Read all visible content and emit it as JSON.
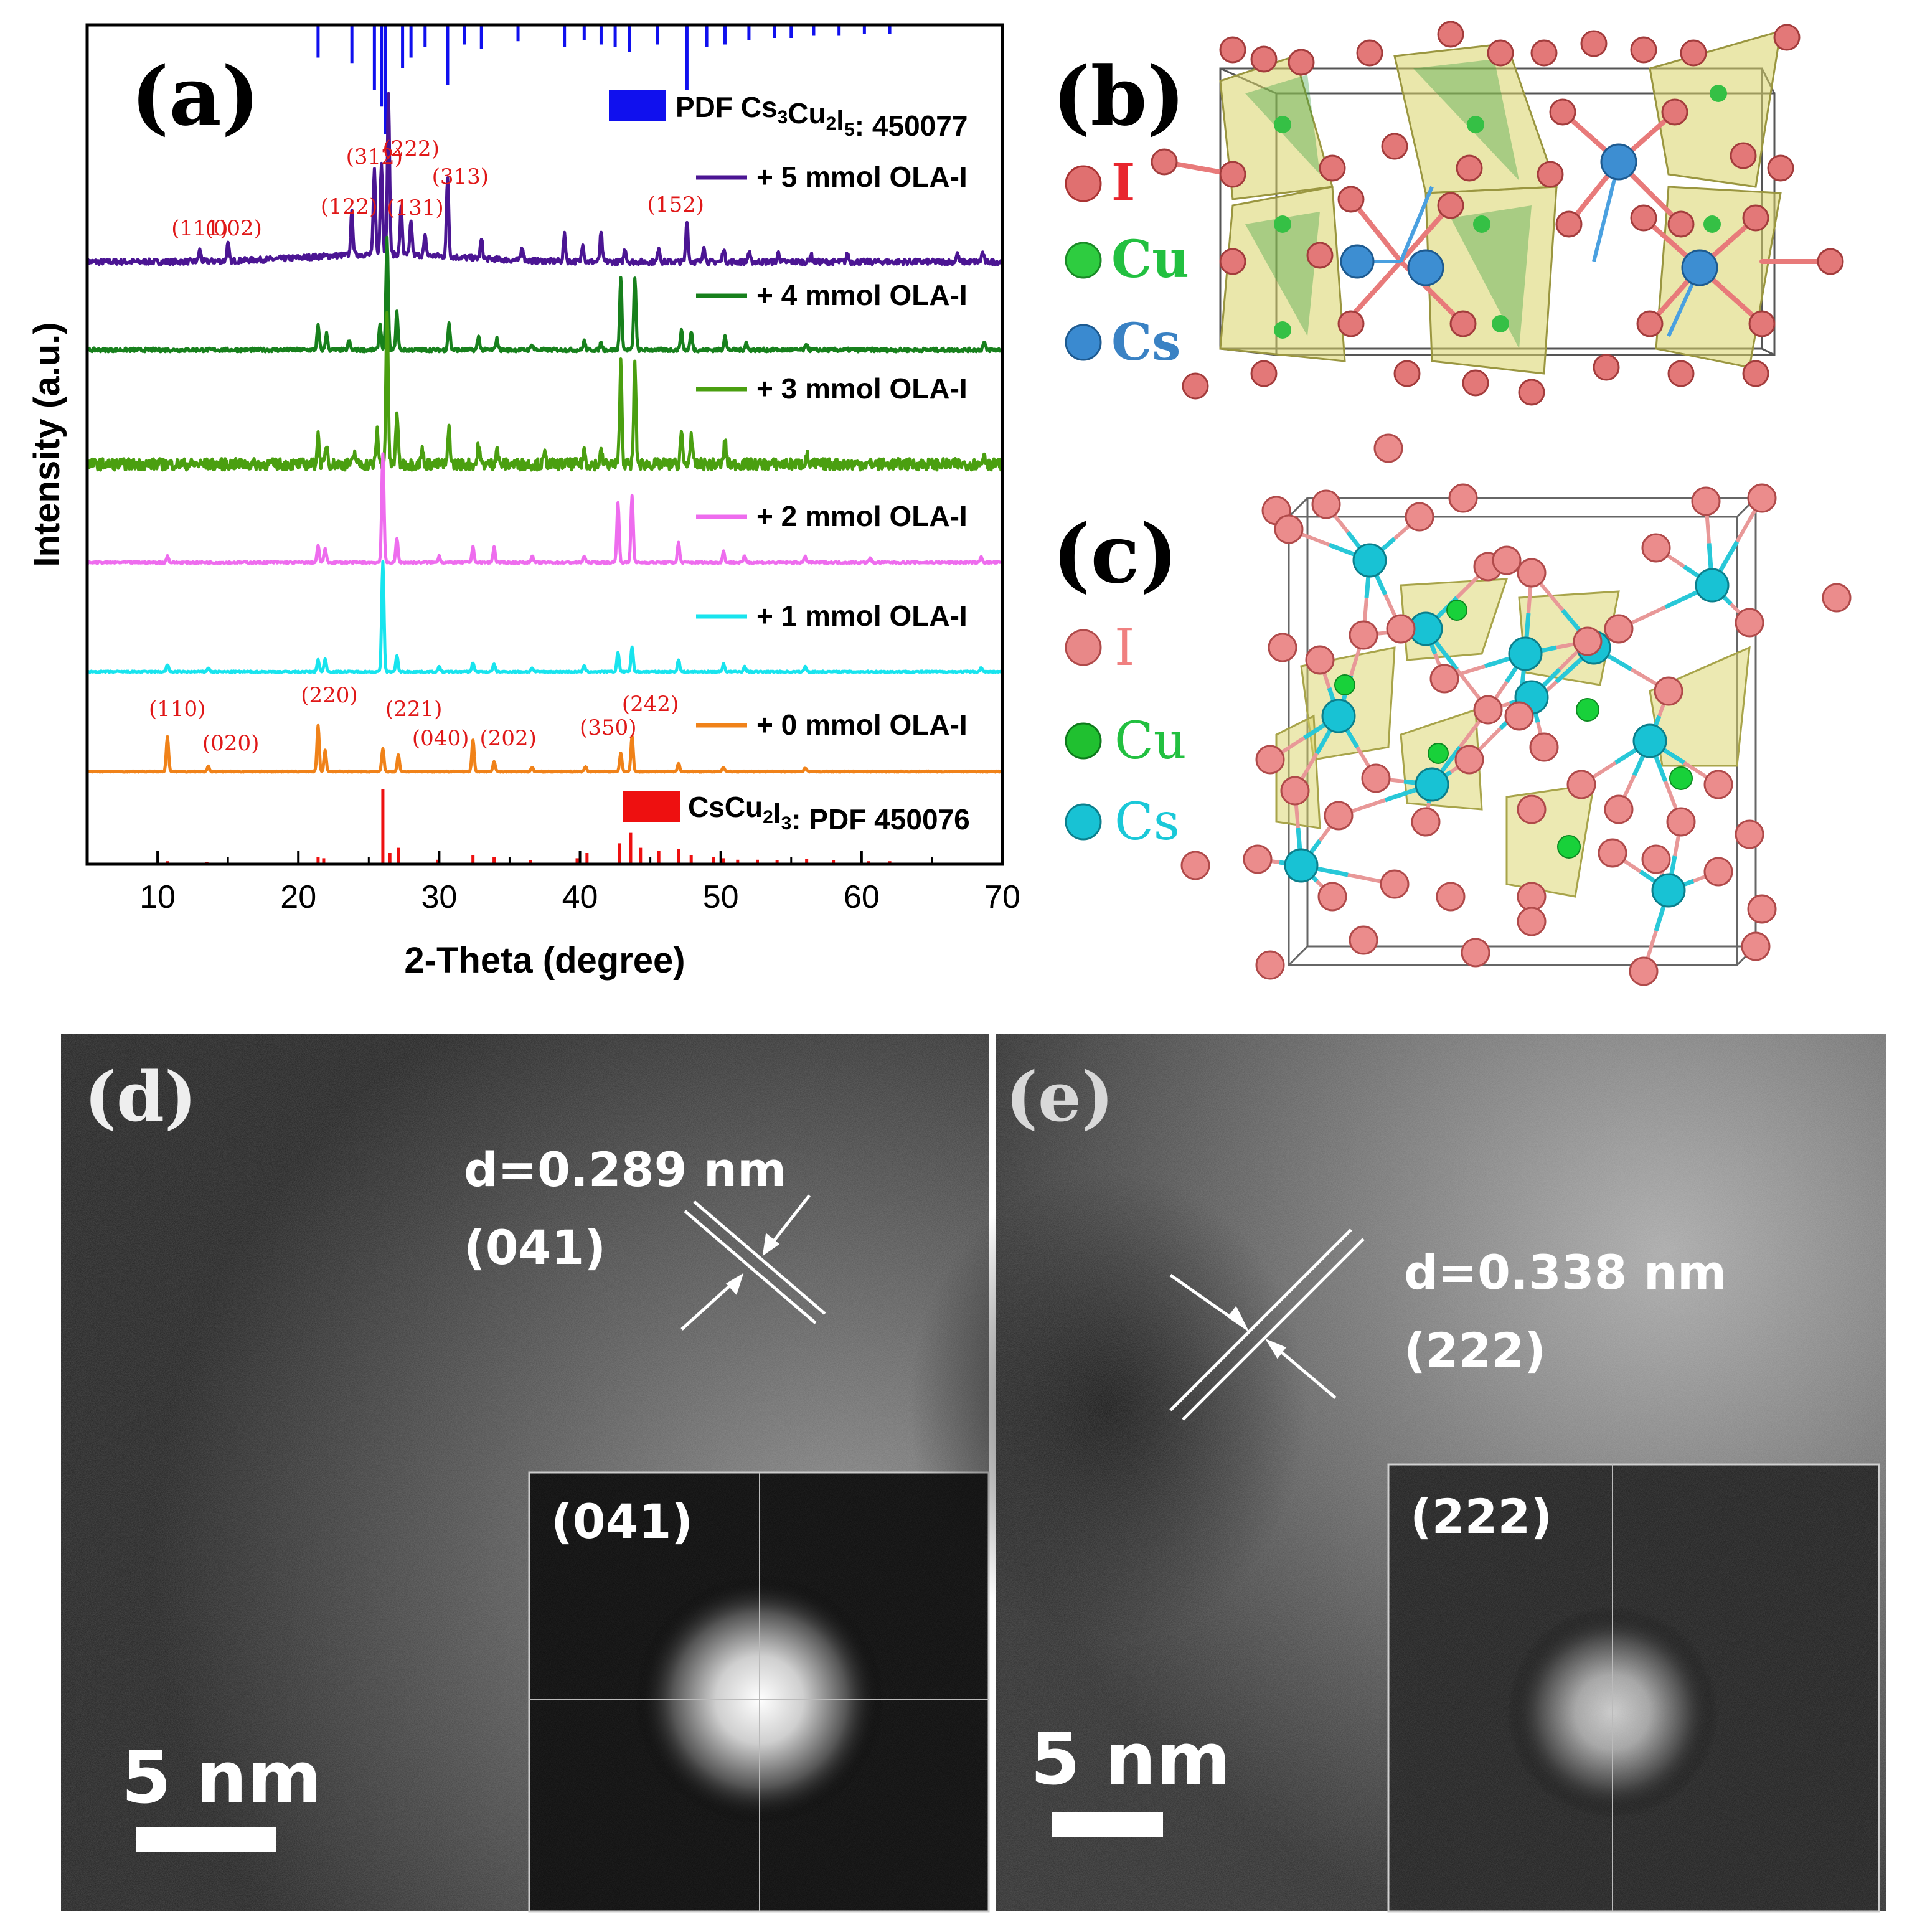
{
  "chart_data": {
    "type": "line",
    "panel_label": "(a)",
    "xlabel": "2-Theta (degree)",
    "ylabel": "Intensity (a.u.)",
    "xlim": [
      5,
      70
    ],
    "xticks": [
      10,
      20,
      30,
      40,
      50,
      60,
      70
    ],
    "grid": false,
    "legend_placement": "right, next to each trace",
    "reference_top": {
      "label": "PDF Cs3Cu2I5: 450077",
      "color": "#1010ee",
      "peaks": [
        {
          "x": 21.4,
          "h": 0.3
        },
        {
          "x": 23.8,
          "h": 0.35
        },
        {
          "x": 25.4,
          "h": 0.6
        },
        {
          "x": 25.9,
          "h": 0.75
        },
        {
          "x": 26.2,
          "h": 1.0
        },
        {
          "x": 27.4,
          "h": 0.4
        },
        {
          "x": 28.0,
          "h": 0.3
        },
        {
          "x": 29.0,
          "h": 0.2
        },
        {
          "x": 30.6,
          "h": 0.55
        },
        {
          "x": 31.8,
          "h": 0.18
        },
        {
          "x": 33.0,
          "h": 0.22
        },
        {
          "x": 35.6,
          "h": 0.15
        },
        {
          "x": 38.9,
          "h": 0.2
        },
        {
          "x": 40.3,
          "h": 0.14
        },
        {
          "x": 41.5,
          "h": 0.18
        },
        {
          "x": 42.5,
          "h": 0.2
        },
        {
          "x": 43.5,
          "h": 0.25
        },
        {
          "x": 45.5,
          "h": 0.18
        },
        {
          "x": 47.6,
          "h": 0.6
        },
        {
          "x": 49.0,
          "h": 0.2
        },
        {
          "x": 50.3,
          "h": 0.18
        },
        {
          "x": 52.0,
          "h": 0.14
        },
        {
          "x": 53.8,
          "h": 0.12
        },
        {
          "x": 55.0,
          "h": 0.12
        },
        {
          "x": 56.6,
          "h": 0.1
        },
        {
          "x": 58.4,
          "h": 0.1
        },
        {
          "x": 60.2,
          "h": 0.08
        },
        {
          "x": 62.0,
          "h": 0.08
        }
      ]
    },
    "reference_bottom": {
      "label": "CsCu2I3: PDF 450076",
      "color": "#ee1010",
      "peaks": [
        {
          "x": 10.7,
          "h": 0.04
        },
        {
          "x": 13.5,
          "h": 0.03
        },
        {
          "x": 21.4,
          "h": 0.1
        },
        {
          "x": 21.8,
          "h": 0.08
        },
        {
          "x": 26.0,
          "h": 1.0
        },
        {
          "x": 26.5,
          "h": 0.15
        },
        {
          "x": 27.1,
          "h": 0.22
        },
        {
          "x": 29.9,
          "h": 0.06
        },
        {
          "x": 32.4,
          "h": 0.12
        },
        {
          "x": 33.9,
          "h": 0.1
        },
        {
          "x": 36.5,
          "h": 0.05
        },
        {
          "x": 39.8,
          "h": 0.08
        },
        {
          "x": 40.5,
          "h": 0.15
        },
        {
          "x": 42.8,
          "h": 0.28
        },
        {
          "x": 43.6,
          "h": 0.42
        },
        {
          "x": 44.3,
          "h": 0.22
        },
        {
          "x": 45.6,
          "h": 0.18
        },
        {
          "x": 47.0,
          "h": 0.2
        },
        {
          "x": 47.9,
          "h": 0.12
        },
        {
          "x": 49.5,
          "h": 0.1
        },
        {
          "x": 50.2,
          "h": 0.08
        },
        {
          "x": 51.2,
          "h": 0.06
        },
        {
          "x": 52.6,
          "h": 0.06
        },
        {
          "x": 54.0,
          "h": 0.05
        },
        {
          "x": 56.1,
          "h": 0.07
        },
        {
          "x": 58.0,
          "h": 0.05
        },
        {
          "x": 60.5,
          "h": 0.04
        },
        {
          "x": 62.0,
          "h": 0.04
        }
      ]
    },
    "series": [
      {
        "name": "+ 5 mmol OLA-I",
        "color": "#4b1593",
        "noise": 0.06,
        "peaks": [
          {
            "x": 13.0,
            "h": 0.12
          },
          {
            "x": 15.0,
            "h": 0.18
          },
          {
            "x": 23.8,
            "h": 0.45
          },
          {
            "x": 25.4,
            "h": 0.9
          },
          {
            "x": 25.9,
            "h": 1.0
          },
          {
            "x": 26.4,
            "h": 1.7
          },
          {
            "x": 27.3,
            "h": 0.5
          },
          {
            "x": 28.0,
            "h": 0.35
          },
          {
            "x": 29.0,
            "h": 0.2
          },
          {
            "x": 30.6,
            "h": 0.85
          },
          {
            "x": 33.0,
            "h": 0.2
          },
          {
            "x": 35.9,
            "h": 0.15
          },
          {
            "x": 38.9,
            "h": 0.28
          },
          {
            "x": 40.2,
            "h": 0.2
          },
          {
            "x": 41.5,
            "h": 0.3
          },
          {
            "x": 43.2,
            "h": 0.14
          },
          {
            "x": 45.6,
            "h": 0.16
          },
          {
            "x": 47.6,
            "h": 0.45
          },
          {
            "x": 48.8,
            "h": 0.18
          },
          {
            "x": 50.2,
            "h": 0.14
          },
          {
            "x": 52.0,
            "h": 0.1
          },
          {
            "x": 54.1,
            "h": 0.1
          },
          {
            "x": 56.4,
            "h": 0.08
          },
          {
            "x": 59.0,
            "h": 0.08
          },
          {
            "x": 66.8,
            "h": 0.08
          },
          {
            "x": 68.6,
            "h": 0.1
          }
        ]
      },
      {
        "name": "+ 4 mmol OLA-I",
        "color": "#17801c",
        "noise": 0.05,
        "peaks": [
          {
            "x": 21.4,
            "h": 0.32
          },
          {
            "x": 22.0,
            "h": 0.22
          },
          {
            "x": 23.6,
            "h": 0.12
          },
          {
            "x": 25.8,
            "h": 0.35
          },
          {
            "x": 26.3,
            "h": 1.5
          },
          {
            "x": 27.0,
            "h": 0.5
          },
          {
            "x": 30.7,
            "h": 0.35
          },
          {
            "x": 32.8,
            "h": 0.18
          },
          {
            "x": 34.1,
            "h": 0.15
          },
          {
            "x": 36.6,
            "h": 0.08
          },
          {
            "x": 40.3,
            "h": 0.12
          },
          {
            "x": 41.5,
            "h": 0.1
          },
          {
            "x": 42.9,
            "h": 0.95
          },
          {
            "x": 43.9,
            "h": 0.98
          },
          {
            "x": 47.2,
            "h": 0.26
          },
          {
            "x": 47.9,
            "h": 0.24
          },
          {
            "x": 50.3,
            "h": 0.2
          },
          {
            "x": 51.8,
            "h": 0.1
          },
          {
            "x": 56.1,
            "h": 0.08
          },
          {
            "x": 68.7,
            "h": 0.1
          }
        ]
      },
      {
        "name": "+ 3 mmol OLA-I",
        "color": "#4a9f10",
        "noise": 0.12,
        "peaks": [
          {
            "x": 21.4,
            "h": 0.3
          },
          {
            "x": 22.0,
            "h": 0.22
          },
          {
            "x": 24.0,
            "h": 0.12
          },
          {
            "x": 25.6,
            "h": 0.35
          },
          {
            "x": 26.3,
            "h": 1.6
          },
          {
            "x": 27.0,
            "h": 0.55
          },
          {
            "x": 28.8,
            "h": 0.15
          },
          {
            "x": 30.7,
            "h": 0.38
          },
          {
            "x": 32.8,
            "h": 0.2
          },
          {
            "x": 34.1,
            "h": 0.18
          },
          {
            "x": 37.5,
            "h": 0.1
          },
          {
            "x": 40.3,
            "h": 0.15
          },
          {
            "x": 41.5,
            "h": 0.12
          },
          {
            "x": 42.9,
            "h": 1.05
          },
          {
            "x": 43.9,
            "h": 1.05
          },
          {
            "x": 47.2,
            "h": 0.32
          },
          {
            "x": 47.9,
            "h": 0.3
          },
          {
            "x": 50.3,
            "h": 0.25
          },
          {
            "x": 56.1,
            "h": 0.1
          },
          {
            "x": 68.7,
            "h": 0.12
          }
        ]
      },
      {
        "name": "+ 2 mmol OLA-I",
        "color": "#ee6cee",
        "noise": 0.018,
        "peaks": [
          {
            "x": 10.7,
            "h": 0.06
          },
          {
            "x": 21.4,
            "h": 0.15
          },
          {
            "x": 21.9,
            "h": 0.13
          },
          {
            "x": 26.0,
            "h": 1.0
          },
          {
            "x": 27.0,
            "h": 0.22
          },
          {
            "x": 30.0,
            "h": 0.06
          },
          {
            "x": 32.4,
            "h": 0.14
          },
          {
            "x": 33.9,
            "h": 0.14
          },
          {
            "x": 36.6,
            "h": 0.06
          },
          {
            "x": 40.3,
            "h": 0.06
          },
          {
            "x": 42.7,
            "h": 0.55
          },
          {
            "x": 43.7,
            "h": 0.62
          },
          {
            "x": 47.0,
            "h": 0.18
          },
          {
            "x": 50.2,
            "h": 0.1
          },
          {
            "x": 51.7,
            "h": 0.06
          },
          {
            "x": 56.0,
            "h": 0.05
          },
          {
            "x": 60.6,
            "h": 0.04
          },
          {
            "x": 68.5,
            "h": 0.05
          }
        ]
      },
      {
        "name": "+ 1 mmol OLA-I",
        "color": "#18e4ee",
        "noise": 0.014,
        "peaks": [
          {
            "x": 10.7,
            "h": 0.07
          },
          {
            "x": 13.6,
            "h": 0.04
          },
          {
            "x": 21.4,
            "h": 0.12
          },
          {
            "x": 21.9,
            "h": 0.13
          },
          {
            "x": 26.0,
            "h": 1.1
          },
          {
            "x": 27.0,
            "h": 0.16
          },
          {
            "x": 30.0,
            "h": 0.05
          },
          {
            "x": 32.4,
            "h": 0.09
          },
          {
            "x": 33.9,
            "h": 0.08
          },
          {
            "x": 36.6,
            "h": 0.04
          },
          {
            "x": 40.3,
            "h": 0.06
          },
          {
            "x": 42.7,
            "h": 0.2
          },
          {
            "x": 43.7,
            "h": 0.25
          },
          {
            "x": 47.0,
            "h": 0.12
          },
          {
            "x": 50.2,
            "h": 0.08
          },
          {
            "x": 51.7,
            "h": 0.05
          },
          {
            "x": 56.0,
            "h": 0.05
          },
          {
            "x": 68.5,
            "h": 0.04
          }
        ]
      },
      {
        "name": "+ 0 mmol OLA-I",
        "color": "#f08219",
        "noise": 0.012,
        "peaks": [
          {
            "x": 10.7,
            "h": 0.42
          },
          {
            "x": 13.6,
            "h": 0.06
          },
          {
            "x": 21.4,
            "h": 0.55
          },
          {
            "x": 21.9,
            "h": 0.25
          },
          {
            "x": 26.0,
            "h": 0.27
          },
          {
            "x": 27.1,
            "h": 0.2
          },
          {
            "x": 32.4,
            "h": 0.38
          },
          {
            "x": 33.9,
            "h": 0.12
          },
          {
            "x": 36.6,
            "h": 0.05
          },
          {
            "x": 40.4,
            "h": 0.06
          },
          {
            "x": 42.9,
            "h": 0.22
          },
          {
            "x": 43.7,
            "h": 0.42
          },
          {
            "x": 47.0,
            "h": 0.1
          },
          {
            "x": 50.2,
            "h": 0.05
          },
          {
            "x": 56.0,
            "h": 0.04
          }
        ]
      }
    ],
    "annotations": [
      {
        "text": "(111)",
        "x": 13.0,
        "target": "+ 5 mmol OLA-I"
      },
      {
        "text": "(002)",
        "x": 15.4,
        "target": "+ 5 mmol OLA-I"
      },
      {
        "text": "(122)",
        "x": 23.6,
        "target": "+ 5 mmol OLA-I"
      },
      {
        "text": "(312)",
        "x": 25.4,
        "target": "+ 5 mmol OLA-I"
      },
      {
        "text": "(222)",
        "x": 28.0,
        "target": "+ 5 mmol OLA-I"
      },
      {
        "text": "(131)",
        "x": 28.3,
        "target": "+ 5 mmol OLA-I"
      },
      {
        "text": "(313)",
        "x": 31.5,
        "target": "+ 5 mmol OLA-I"
      },
      {
        "text": "(152)",
        "x": 46.8,
        "target": "+ 5 mmol OLA-I"
      },
      {
        "text": "(110)",
        "x": 11.4,
        "target": "+ 0 mmol OLA-I"
      },
      {
        "text": "(020)",
        "x": 15.2,
        "target": "+ 0 mmol OLA-I"
      },
      {
        "text": "(220)",
        "x": 22.2,
        "target": "+ 0 mmol OLA-I"
      },
      {
        "text": "(221)",
        "x": 28.2,
        "target": "+ 0 mmol OLA-I"
      },
      {
        "text": "(040)",
        "x": 30.1,
        "target": "+ 0 mmol OLA-I"
      },
      {
        "text": "(202)",
        "x": 34.9,
        "target": "+ 0 mmol OLA-I"
      },
      {
        "text": "(350)",
        "x": 42.0,
        "target": "+ 0 mmol OLA-I"
      },
      {
        "text": "(242)",
        "x": 45.0,
        "target": "+ 0 mmol OLA-I"
      }
    ]
  },
  "structure_b": {
    "panel_label": "(b)",
    "legend": [
      {
        "symbol": "I",
        "color": "#e8262e",
        "ball": "#e07070"
      },
      {
        "symbol": "Cu",
        "color": "#22c040",
        "ball": "#2ecc40"
      },
      {
        "symbol": "Cs",
        "color": "#3a82c4",
        "ball": "#3a8ad0"
      }
    ]
  },
  "structure_c": {
    "panel_label": "(c)",
    "legend": [
      {
        "symbol": "I",
        "color": "#f08080",
        "ball": "#e88888"
      },
      {
        "symbol": "Cu",
        "color": "#22c040",
        "ball": "#20c030"
      },
      {
        "symbol": "Cs",
        "color": "#1ac8d8",
        "ball": "#18c2d4"
      }
    ]
  },
  "tem_d": {
    "panel_label": "(d)",
    "d_spacing": "d=0.289 nm",
    "plane": "(041)",
    "fft_label": "(041)",
    "scale_bar": "5 nm"
  },
  "tem_e": {
    "panel_label": "(e)",
    "d_spacing": "d=0.338 nm",
    "plane": "(222)",
    "fft_label": "(222)",
    "scale_bar": "5 nm"
  }
}
